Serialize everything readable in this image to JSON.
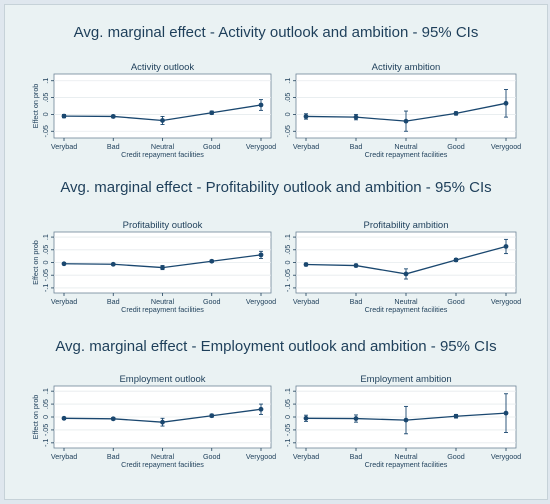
{
  "figure": {
    "row_titles": [
      "Avg. marginal effect - Activity outlook and ambition - 95% CIs",
      "Avg. marginal effect - Profitability outlook and ambition - 95% CIs",
      "Avg. marginal effect - Employment outlook and ambition - 95% CIs"
    ]
  },
  "colors": {
    "series": "#1a476f",
    "text": "#1e3f5a",
    "figure_bg": "#eaf2f3",
    "plot_bg": "#ffffff"
  },
  "chart_data": [
    {
      "type": "line",
      "title": "Activity outlook",
      "categories": [
        "Verybad",
        "Bad",
        "Neutral",
        "Good",
        "Verygood"
      ],
      "xlabel": "Credit repayment facilities",
      "ylabel": "Effect on prob",
      "ylim": [
        -0.07,
        0.12
      ],
      "yticks": [
        -0.05,
        0,
        0.05,
        0.1
      ],
      "ytick_labels": [
        "-.05",
        "0",
        ".05",
        ".1"
      ],
      "grid": true,
      "series": [
        {
          "values": [
            -0.005,
            -0.006,
            -0.018,
            0.005,
            0.028
          ],
          "ci_low": [
            -0.01,
            -0.01,
            -0.03,
            0.0,
            0.012
          ],
          "ci_high": [
            0.0,
            -0.002,
            -0.006,
            0.01,
            0.044
          ]
        }
      ]
    },
    {
      "type": "line",
      "title": "Activity ambition",
      "categories": [
        "Verybad",
        "Bad",
        "Neutral",
        "Good",
        "Verygood"
      ],
      "xlabel": "Credit repayment facilities",
      "ylabel": "",
      "ylim": [
        -0.07,
        0.12
      ],
      "yticks": [
        -0.05,
        0,
        0.05,
        0.1
      ],
      "ytick_labels": [
        "-.05",
        "0",
        ".05",
        ".1"
      ],
      "grid": true,
      "series": [
        {
          "values": [
            -0.006,
            -0.008,
            -0.02,
            0.003,
            0.033
          ],
          "ci_low": [
            -0.014,
            -0.016,
            -0.05,
            -0.002,
            -0.008
          ],
          "ci_high": [
            0.002,
            0.0,
            0.01,
            0.008,
            0.074
          ]
        }
      ]
    },
    {
      "type": "line",
      "title": "Profitability outlook",
      "categories": [
        "Verybad",
        "Bad",
        "Neutral",
        "Good",
        "Verygood"
      ],
      "xlabel": "Credit repayment facilities",
      "ylabel": "Effect on prob",
      "ylim": [
        -0.12,
        0.12
      ],
      "yticks": [
        -0.1,
        -0.05,
        0,
        0.05,
        0.1
      ],
      "ytick_labels": [
        "-.1",
        "-.05",
        "0",
        ".05",
        ".1"
      ],
      "grid": true,
      "series": [
        {
          "values": [
            -0.005,
            -0.007,
            -0.02,
            0.005,
            0.03
          ],
          "ci_low": [
            -0.009,
            -0.011,
            -0.028,
            0.0,
            0.016
          ],
          "ci_high": [
            -0.001,
            -0.003,
            -0.012,
            0.01,
            0.044
          ]
        }
      ]
    },
    {
      "type": "line",
      "title": "Profitability ambition",
      "categories": [
        "Verybad",
        "Bad",
        "Neutral",
        "Good",
        "Verygood"
      ],
      "xlabel": "Credit repayment facilities",
      "ylabel": "",
      "ylim": [
        -0.12,
        0.12
      ],
      "yticks": [
        -0.1,
        -0.05,
        0,
        0.05,
        0.1
      ],
      "ytick_labels": [
        "-.1",
        "-.05",
        "0",
        ".05",
        ".1"
      ],
      "grid": true,
      "series": [
        {
          "values": [
            -0.008,
            -0.012,
            -0.045,
            0.01,
            0.063
          ],
          "ci_low": [
            -0.014,
            -0.018,
            -0.065,
            0.004,
            0.035
          ],
          "ci_high": [
            -0.002,
            -0.006,
            -0.025,
            0.016,
            0.091
          ]
        }
      ]
    },
    {
      "type": "line",
      "title": "Employment outlook",
      "categories": [
        "Verybad",
        "Bad",
        "Neutral",
        "Good",
        "Verygood"
      ],
      "xlabel": "Credit repayment facilities",
      "ylabel": "Effect on prob",
      "ylim": [
        -0.12,
        0.12
      ],
      "yticks": [
        -0.1,
        -0.05,
        0,
        0.05,
        0.1
      ],
      "ytick_labels": [
        "-.1",
        "-.05",
        "0",
        ".05",
        ".1"
      ],
      "grid": true,
      "series": [
        {
          "values": [
            -0.005,
            -0.007,
            -0.02,
            0.005,
            0.03
          ],
          "ci_low": [
            -0.01,
            -0.012,
            -0.035,
            -0.001,
            0.01
          ],
          "ci_high": [
            0.0,
            -0.002,
            -0.005,
            0.011,
            0.05
          ]
        }
      ]
    },
    {
      "type": "line",
      "title": "Employment ambition",
      "categories": [
        "Verybad",
        "Bad",
        "Neutral",
        "Good",
        "Verygood"
      ],
      "xlabel": "Credit repayment facilities",
      "ylabel": "",
      "ylim": [
        -0.12,
        0.12
      ],
      "yticks": [
        -0.1,
        -0.05,
        0,
        0.05,
        0.1
      ],
      "ytick_labels": [
        "-.1",
        "-.05",
        "0",
        ".05",
        ".1"
      ],
      "grid": true,
      "series": [
        {
          "values": [
            -0.005,
            -0.006,
            -0.012,
            0.003,
            0.015
          ],
          "ci_low": [
            -0.017,
            -0.02,
            -0.065,
            -0.004,
            -0.06
          ],
          "ci_high": [
            0.007,
            0.008,
            0.041,
            0.01,
            0.09
          ]
        }
      ]
    }
  ]
}
